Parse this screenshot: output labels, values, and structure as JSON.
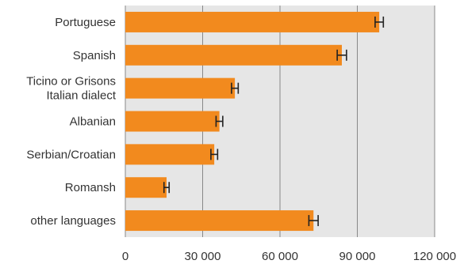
{
  "chart_data": {
    "type": "bar",
    "orientation": "horizontal",
    "categories": [
      [
        "Portuguese"
      ],
      [
        "Spanish"
      ],
      [
        "Ticino or Grisons",
        "Italian dialect"
      ],
      [
        "Albanian"
      ],
      [
        "Serbian/Croatian"
      ],
      [
        "Romansh"
      ],
      [
        "other languages"
      ]
    ],
    "values": [
      98500,
      84000,
      42500,
      36500,
      34500,
      16000,
      73000
    ],
    "error": [
      1600,
      1800,
      1300,
      1300,
      1300,
      1000,
      1800
    ],
    "xlim": [
      0,
      120000
    ],
    "xticks": [
      0,
      30000,
      60000,
      90000,
      120000
    ],
    "xtick_labels": [
      "0",
      "30 000",
      "60 000",
      "90 000",
      "120 000"
    ],
    "grid": true,
    "colors": {
      "bar": "#F28A1E",
      "grid": "#888888",
      "plot_bg": "#E6E6E6",
      "error_bar": "#222222"
    }
  }
}
